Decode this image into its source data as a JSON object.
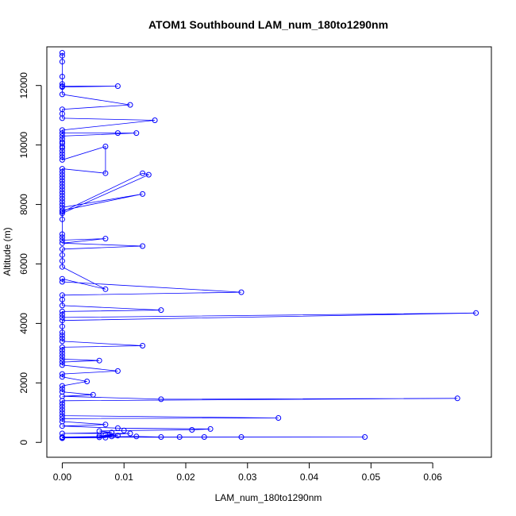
{
  "chart_data": {
    "type": "line",
    "title": "ATOM1 Southbound LAM_num_180to1290nm",
    "xlabel": "LAM_num_180to1290nm",
    "ylabel": "Altitude (m)",
    "xlim": [
      -0.0025,
      0.0695
    ],
    "ylim": [
      -500,
      13300
    ],
    "xticks": [
      0.0,
      0.01,
      0.02,
      0.03,
      0.04,
      0.05,
      0.06
    ],
    "xtick_labels": [
      "0.00",
      "0.01",
      "0.02",
      "0.03",
      "0.04",
      "0.05",
      "0.06"
    ],
    "yticks": [
      0,
      2000,
      4000,
      6000,
      8000,
      10000,
      12000
    ],
    "ytick_labels": [
      "0",
      "2000",
      "4000",
      "6000",
      "8000",
      "10000",
      "12000"
    ],
    "grid": false,
    "legend": "none",
    "color": "#0000ff",
    "series": [
      {
        "points": [
          [
            0.0,
            13100
          ],
          [
            0.0,
            13000
          ],
          [
            0.0,
            12800
          ],
          [
            0.0,
            12300
          ],
          [
            0.0,
            12050
          ],
          [
            0.0,
            11980
          ],
          [
            0.009,
            11980
          ],
          [
            0.0,
            11950
          ],
          [
            0.0,
            11700
          ],
          [
            0.011,
            11350
          ],
          [
            0.0,
            11200
          ],
          [
            0.0,
            11050
          ],
          [
            0.0,
            10900
          ],
          [
            0.015,
            10830
          ],
          [
            0.0,
            10500
          ],
          [
            0.0,
            10400
          ],
          [
            0.009,
            10400
          ],
          [
            0.012,
            10400
          ],
          [
            0.0,
            10300
          ],
          [
            0.0,
            10200
          ],
          [
            0.0,
            10100
          ],
          [
            0.0,
            10050
          ],
          [
            0.0,
            9950
          ],
          [
            0.0,
            9900
          ],
          [
            0.0,
            9800
          ],
          [
            0.0,
            9700
          ],
          [
            0.0,
            9600
          ],
          [
            0.0,
            9500
          ],
          [
            0.007,
            9950
          ],
          [
            0.007,
            9050
          ],
          [
            0.0,
            9200
          ],
          [
            0.0,
            9100
          ],
          [
            0.0,
            9000
          ],
          [
            0.0,
            8900
          ],
          [
            0.0,
            8800
          ],
          [
            0.0,
            8700
          ],
          [
            0.0,
            8600
          ],
          [
            0.0,
            8500
          ],
          [
            0.0,
            8400
          ],
          [
            0.0,
            8300
          ],
          [
            0.0,
            8200
          ],
          [
            0.0,
            8100
          ],
          [
            0.0,
            8000
          ],
          [
            0.0,
            7900
          ],
          [
            0.013,
            8350
          ],
          [
            0.0,
            7800
          ],
          [
            0.0,
            7750
          ],
          [
            0.013,
            9050
          ],
          [
            0.014,
            9000
          ],
          [
            0.0,
            7700
          ],
          [
            0.0,
            7500
          ],
          [
            0.0,
            7000
          ],
          [
            0.0,
            6900
          ],
          [
            0.0,
            6800
          ],
          [
            0.007,
            6850
          ],
          [
            0.0,
            6700
          ],
          [
            0.013,
            6600
          ],
          [
            0.0,
            6500
          ],
          [
            0.0,
            6300
          ],
          [
            0.0,
            6100
          ],
          [
            0.0,
            5900
          ],
          [
            0.007,
            5150
          ],
          [
            0.0,
            5500
          ],
          [
            0.0,
            5400
          ],
          [
            0.029,
            5050
          ],
          [
            0.0,
            4950
          ],
          [
            0.0,
            4800
          ],
          [
            0.0,
            4600
          ],
          [
            0.016,
            4450
          ],
          [
            0.0,
            4400
          ],
          [
            0.0,
            4300
          ],
          [
            0.0,
            4200
          ],
          [
            0.067,
            4350
          ],
          [
            0.0,
            4100
          ],
          [
            0.0,
            3900
          ],
          [
            0.0,
            3700
          ],
          [
            0.0,
            3600
          ],
          [
            0.0,
            3500
          ],
          [
            0.0,
            3400
          ],
          [
            0.013,
            3250
          ],
          [
            0.0,
            3200
          ],
          [
            0.0,
            3100
          ],
          [
            0.0,
            3000
          ],
          [
            0.0,
            2900
          ],
          [
            0.0,
            2800
          ],
          [
            0.006,
            2750
          ],
          [
            0.0,
            2700
          ],
          [
            0.0,
            2600
          ],
          [
            0.009,
            2400
          ],
          [
            0.0,
            2300
          ],
          [
            0.0,
            2200
          ],
          [
            0.004,
            2050
          ],
          [
            0.0,
            1900
          ],
          [
            0.0,
            1800
          ],
          [
            0.0,
            1700
          ],
          [
            0.005,
            1600
          ],
          [
            0.0,
            1550
          ],
          [
            0.016,
            1450
          ],
          [
            0.064,
            1480
          ],
          [
            0.0,
            1400
          ],
          [
            0.0,
            1300
          ],
          [
            0.0,
            1200
          ],
          [
            0.0,
            1100
          ],
          [
            0.0,
            1000
          ],
          [
            0.0,
            900
          ],
          [
            0.035,
            820
          ],
          [
            0.0,
            800
          ],
          [
            0.0,
            700
          ],
          [
            0.007,
            600
          ],
          [
            0.0,
            550
          ],
          [
            0.009,
            480
          ],
          [
            0.024,
            450
          ],
          [
            0.021,
            420
          ],
          [
            0.01,
            400
          ],
          [
            0.006,
            380
          ],
          [
            0.008,
            330
          ],
          [
            0.0,
            300
          ],
          [
            0.011,
            300
          ],
          [
            0.007,
            250
          ],
          [
            0.009,
            230
          ],
          [
            0.006,
            220
          ],
          [
            0.008,
            200
          ],
          [
            0.0,
            180
          ],
          [
            0.012,
            200
          ],
          [
            0.016,
            180
          ],
          [
            0.019,
            180
          ],
          [
            0.023,
            180
          ],
          [
            0.029,
            180
          ],
          [
            0.049,
            180
          ],
          [
            0.0,
            170
          ],
          [
            0.006,
            170
          ],
          [
            0.007,
            160
          ],
          [
            0.0,
            150
          ],
          [
            0.0,
            140
          ]
        ]
      }
    ]
  }
}
